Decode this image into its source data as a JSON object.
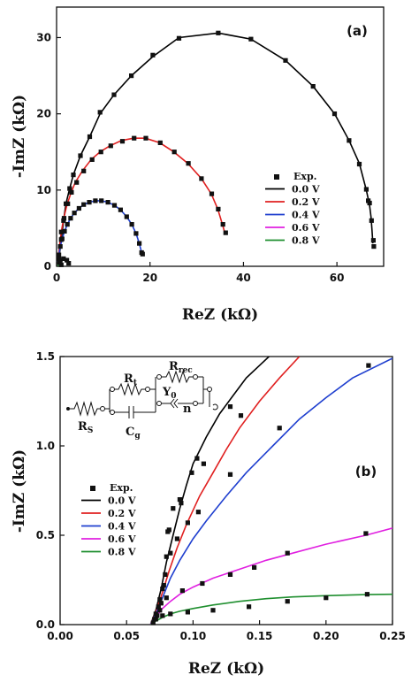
{
  "chart_data": [
    {
      "type": "scatter",
      "panel_label": "(a)",
      "xlabel": "ReZ (kΩ)",
      "ylabel": "-ImZ (kΩ)",
      "xlim": [
        0,
        70
      ],
      "ylim": [
        0,
        34
      ],
      "xticks": [
        0,
        20,
        40,
        60
      ],
      "yticks": [
        0,
        10,
        20,
        30
      ],
      "legend_position": "right",
      "legend_marker_label": "Exp.",
      "series": [
        {
          "name": "0.0 V",
          "color": "#000000",
          "x": [
            0.5,
            1.0,
            1.5,
            2.0,
            2.8,
            3.6,
            5.1,
            7.1,
            9.3,
            12.3,
            16.0,
            20.6,
            26.2,
            34.6,
            41.6,
            49.0,
            54.9,
            59.5,
            62.6,
            64.8,
            66.3,
            67.0,
            67.3,
            67.5,
            67.7
          ],
          "y": [
            1.0,
            3.5,
            6.0,
            8.2,
            10.2,
            12.0,
            14.5,
            17.0,
            20.0,
            22.5,
            25.0,
            27.5,
            30.0,
            30.6,
            29.8,
            27.0,
            23.6,
            20.0,
            16.5,
            13.5,
            10.0,
            8.0,
            6.5,
            4.8,
            3.0
          ]
        },
        {
          "name": "0.2 V",
          "color": "#e02020",
          "x": [
            0.3,
            0.6,
            1.0,
            1.5,
            2.2,
            3.0,
            4.0,
            5.5,
            7.4,
            9.3,
            11.4,
            13.9,
            16.5,
            19.0,
            22.1,
            25.1,
            28.1,
            31.0,
            33.1,
            34.5,
            35.5,
            36.1
          ],
          "y": [
            0.8,
            2.5,
            4.5,
            6.2,
            8.0,
            9.5,
            11.0,
            12.5,
            14.0,
            15.0,
            15.8,
            16.5,
            16.8,
            16.8,
            16.2,
            15.0,
            13.5,
            11.5,
            9.5,
            7.5,
            5.5,
            4.2
          ]
        },
        {
          "name": "0.4 V",
          "color": "#1f3fcf",
          "x": [
            0.2,
            0.5,
            0.8,
            1.2,
            1.7,
            2.3,
            3.0,
            3.8,
            4.8,
            5.8,
            7.0,
            8.3,
            9.6,
            11.0,
            12.4,
            13.7,
            15.0,
            16.1,
            17.0,
            17.7,
            18.2
          ],
          "y": [
            0.6,
            1.5,
            2.6,
            3.6,
            4.6,
            5.5,
            6.3,
            7.0,
            7.6,
            8.1,
            8.4,
            8.6,
            8.6,
            8.4,
            8.0,
            7.4,
            6.5,
            5.5,
            4.3,
            3.0,
            1.8
          ]
        },
        {
          "name": "0.6 V",
          "color": "#e020e0",
          "x": [
            0.3,
            0.8,
            1.5,
            2.2,
            2.6
          ],
          "y": [
            0.3,
            0.8,
            1.0,
            0.8,
            0.3
          ]
        },
        {
          "name": "0.8 V",
          "color": "#1f8f2f",
          "x": [
            0.2,
            0.6,
            1.0,
            1.4
          ],
          "y": [
            0.1,
            0.2,
            0.2,
            0.1
          ]
        }
      ],
      "exp_points": [
        [
          0.5,
          1.0
        ],
        [
          1.0,
          3.5
        ],
        [
          1.5,
          6.0
        ],
        [
          2.0,
          8.2
        ],
        [
          2.8,
          10.2
        ],
        [
          3.6,
          12.0
        ],
        [
          5.1,
          14.5
        ],
        [
          7.1,
          17.0
        ],
        [
          9.3,
          20.2
        ],
        [
          12.3,
          22.5
        ],
        [
          16.0,
          25.0
        ],
        [
          20.6,
          27.7
        ],
        [
          26.2,
          29.9
        ],
        [
          34.6,
          30.6
        ],
        [
          41.6,
          29.8
        ],
        [
          49.0,
          27.0
        ],
        [
          54.9,
          23.6
        ],
        [
          59.5,
          20.0
        ],
        [
          62.6,
          16.5
        ],
        [
          64.8,
          13.4
        ],
        [
          66.3,
          10.1
        ],
        [
          67.0,
          8.3
        ],
        [
          66.7,
          8.6
        ],
        [
          67.4,
          6.0
        ],
        [
          67.8,
          3.4
        ],
        [
          67.9,
          2.6
        ],
        [
          1.0,
          4.5
        ],
        [
          1.6,
          6.3
        ],
        [
          2.4,
          8.2
        ],
        [
          3.2,
          9.7
        ],
        [
          4.3,
          11.0
        ],
        [
          5.8,
          12.5
        ],
        [
          7.6,
          14.0
        ],
        [
          9.5,
          15.0
        ],
        [
          11.6,
          15.8
        ],
        [
          14.1,
          16.4
        ],
        [
          16.6,
          16.8
        ],
        [
          19.1,
          16.8
        ],
        [
          22.2,
          16.2
        ],
        [
          25.2,
          15.0
        ],
        [
          28.2,
          13.5
        ],
        [
          31.0,
          11.5
        ],
        [
          33.2,
          9.5
        ],
        [
          34.6,
          7.5
        ],
        [
          35.6,
          5.5
        ],
        [
          36.2,
          4.4
        ],
        [
          0.5,
          1.5
        ],
        [
          0.8,
          2.6
        ],
        [
          1.2,
          3.6
        ],
        [
          1.7,
          4.6
        ],
        [
          2.3,
          5.5
        ],
        [
          3.0,
          6.3
        ],
        [
          3.8,
          7.0
        ],
        [
          4.8,
          7.6
        ],
        [
          5.8,
          8.1
        ],
        [
          7.0,
          8.4
        ],
        [
          8.3,
          8.6
        ],
        [
          9.6,
          8.6
        ],
        [
          11.0,
          8.4
        ],
        [
          12.4,
          8.0
        ],
        [
          13.7,
          7.4
        ],
        [
          15.0,
          6.5
        ],
        [
          16.1,
          5.5
        ],
        [
          17.0,
          4.3
        ],
        [
          17.7,
          3.0
        ],
        [
          18.2,
          1.8
        ],
        [
          18.4,
          1.6
        ],
        [
          0.8,
          0.8
        ],
        [
          1.5,
          1.0
        ],
        [
          2.2,
          0.8
        ],
        [
          2.6,
          0.4
        ],
        [
          0.6,
          0.5
        ],
        [
          1.0,
          0.2
        ]
      ]
    },
    {
      "type": "scatter",
      "panel_label": "(b)",
      "xlabel": "ReZ (kΩ)",
      "ylabel": "-ImZ (kΩ)",
      "xlim": [
        0.0,
        0.25
      ],
      "ylim": [
        0.0,
        1.5
      ],
      "xticks": [
        "0.00",
        "0.05",
        "0.10",
        "0.15",
        "0.20",
        "0.25"
      ],
      "yticks": [
        "0.0",
        "0.5",
        "1.0",
        "1.5"
      ],
      "legend_position": "left",
      "legend_marker_label": "Exp.",
      "series": [
        {
          "name": "0.0 V",
          "color": "#000000",
          "x": [
            0.068,
            0.072,
            0.076,
            0.08,
            0.085,
            0.09,
            0.095,
            0.1,
            0.11,
            0.12,
            0.13,
            0.14,
            0.15,
            0.16
          ],
          "y": [
            0.0,
            0.08,
            0.2,
            0.35,
            0.5,
            0.65,
            0.78,
            0.9,
            1.05,
            1.18,
            1.28,
            1.38,
            1.45,
            1.52
          ]
        },
        {
          "name": "0.2 V",
          "color": "#e02020",
          "x": [
            0.068,
            0.072,
            0.077,
            0.082,
            0.088,
            0.095,
            0.105,
            0.115,
            0.125,
            0.135,
            0.15,
            0.165,
            0.18
          ],
          "y": [
            0.0,
            0.07,
            0.18,
            0.3,
            0.43,
            0.56,
            0.72,
            0.85,
            0.98,
            1.1,
            1.25,
            1.38,
            1.5
          ]
        },
        {
          "name": "0.4 V",
          "color": "#1f3fcf",
          "x": [
            0.068,
            0.072,
            0.077,
            0.083,
            0.09,
            0.1,
            0.11,
            0.125,
            0.14,
            0.16,
            0.18,
            0.2,
            0.22,
            0.25
          ],
          "y": [
            0.0,
            0.06,
            0.15,
            0.26,
            0.36,
            0.48,
            0.58,
            0.72,
            0.85,
            1.0,
            1.15,
            1.27,
            1.38,
            1.49
          ]
        },
        {
          "name": "0.6 V",
          "color": "#e020e0",
          "x": [
            0.068,
            0.072,
            0.077,
            0.083,
            0.09,
            0.1,
            0.115,
            0.135,
            0.155,
            0.175,
            0.2,
            0.23,
            0.25
          ],
          "y": [
            0.0,
            0.04,
            0.09,
            0.13,
            0.17,
            0.21,
            0.26,
            0.31,
            0.36,
            0.4,
            0.45,
            0.5,
            0.54
          ]
        },
        {
          "name": "0.8 V",
          "color": "#1f8f2f",
          "x": [
            0.068,
            0.072,
            0.077,
            0.083,
            0.09,
            0.1,
            0.115,
            0.135,
            0.155,
            0.175,
            0.2,
            0.23,
            0.25
          ],
          "y": [
            0.0,
            0.02,
            0.04,
            0.06,
            0.075,
            0.09,
            0.11,
            0.13,
            0.145,
            0.155,
            0.162,
            0.168,
            0.17
          ]
        }
      ],
      "exp_points": [
        [
          0.07,
          0.01
        ],
        [
          0.071,
          0.03
        ],
        [
          0.072,
          0.06
        ],
        [
          0.074,
          0.1
        ],
        [
          0.075,
          0.14
        ],
        [
          0.077,
          0.2
        ],
        [
          0.079,
          0.28
        ],
        [
          0.08,
          0.38
        ],
        [
          0.081,
          0.52
        ],
        [
          0.082,
          0.53
        ],
        [
          0.085,
          0.65
        ],
        [
          0.09,
          0.7
        ],
        [
          0.091,
          0.68
        ],
        [
          0.099,
          0.85
        ],
        [
          0.103,
          0.93
        ],
        [
          0.108,
          0.9
        ],
        [
          0.128,
          1.22
        ],
        [
          0.136,
          1.17
        ],
        [
          0.128,
          0.84
        ],
        [
          0.165,
          1.1
        ],
        [
          0.232,
          1.45
        ],
        [
          0.073,
          0.05
        ],
        [
          0.076,
          0.12
        ],
        [
          0.078,
          0.22
        ],
        [
          0.083,
          0.4
        ],
        [
          0.088,
          0.48
        ],
        [
          0.096,
          0.57
        ],
        [
          0.104,
          0.63
        ],
        [
          0.075,
          0.08
        ],
        [
          0.08,
          0.15
        ],
        [
          0.092,
          0.19
        ],
        [
          0.107,
          0.23
        ],
        [
          0.128,
          0.28
        ],
        [
          0.146,
          0.32
        ],
        [
          0.171,
          0.4
        ],
        [
          0.23,
          0.51
        ],
        [
          0.072,
          0.03
        ],
        [
          0.077,
          0.05
        ],
        [
          0.083,
          0.06
        ],
        [
          0.096,
          0.07
        ],
        [
          0.115,
          0.08
        ],
        [
          0.142,
          0.1
        ],
        [
          0.171,
          0.13
        ],
        [
          0.2,
          0.15
        ],
        [
          0.231,
          0.17
        ]
      ],
      "circuit_labels": {
        "rs": "R",
        "rs_sub": "S",
        "rt": "R",
        "rt_sub": "t",
        "rrec": "R",
        "rrec_sub": "rec",
        "y0": "Y",
        "y0_sub": "0",
        "n": "n",
        "cg": "C",
        "cg_sub": "g"
      }
    }
  ]
}
